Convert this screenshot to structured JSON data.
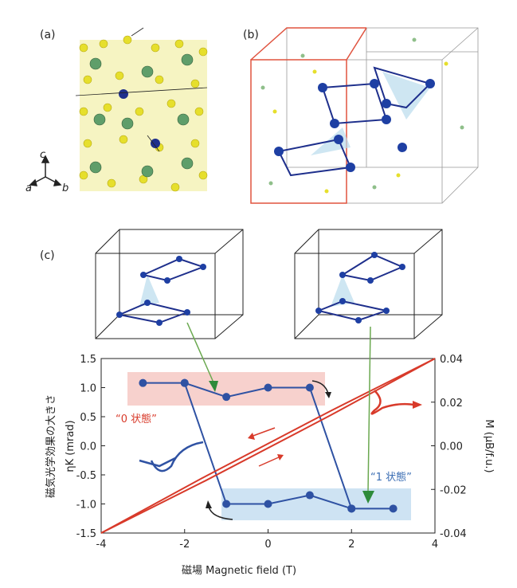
{
  "panels": {
    "a": "(a)",
    "b": "(b)",
    "c": "(c)"
  },
  "crystal_axes": [
    "c",
    "a",
    "b"
  ],
  "chart_data": {
    "type": "line",
    "xlabel": "磁場 Magnetic field (T)",
    "ylabel": [
      "磁気光学効果の大きさ",
      "ηK (mrad)"
    ],
    "y2label": "M (μB/f.u.)",
    "annotations": [
      "“0 状態”",
      "“1 状態”"
    ],
    "xlim": [
      -4,
      4
    ],
    "xticks": [
      -4,
      -2,
      0,
      2,
      4
    ],
    "ylim": [
      -1.5,
      1.5
    ],
    "yticks": [
      -1.5,
      {
        "value": -1,
        "label": "-1.0"
      },
      -0.5,
      {
        "value": 0,
        "label": "0.0"
      },
      0.5,
      {
        "value": 1,
        "label": "1.0"
      },
      1.5
    ],
    "y2lim": [
      -0.04,
      0.04
    ],
    "y2ticks": [
      -0.04,
      -0.02,
      {
        "value": 0,
        "label": "0.00"
      },
      0.02,
      0.04
    ],
    "series": [
      {
        "color": "#2f52a3",
        "markers": true,
        "x": [
          -3,
          -2,
          -1,
          0,
          1,
          2,
          3
        ],
        "values": [
          1.08,
          1.08,
          0.84,
          1.0,
          1.0,
          -1.08,
          -1.08
        ]
      },
      {
        "color": "#2f52a3",
        "markers": true,
        "x": [
          -2,
          -1,
          0,
          1,
          2
        ],
        "values": [
          1.08,
          -1.0,
          -1.0,
          -0.85,
          -1.08
        ]
      },
      {
        "color": "#d83a2a",
        "markers": false,
        "axis": "y2",
        "x": [
          -4,
          -1.5,
          1.5,
          4
        ],
        "values": [
          -0.04,
          -0.016,
          0.014,
          0.04
        ]
      },
      {
        "color": "#d83a2a",
        "markers": false,
        "axis": "y2",
        "x": [
          -4,
          -1.5,
          1.5,
          4
        ],
        "values": [
          -0.04,
          -0.014,
          0.016,
          0.04
        ]
      }
    ]
  }
}
